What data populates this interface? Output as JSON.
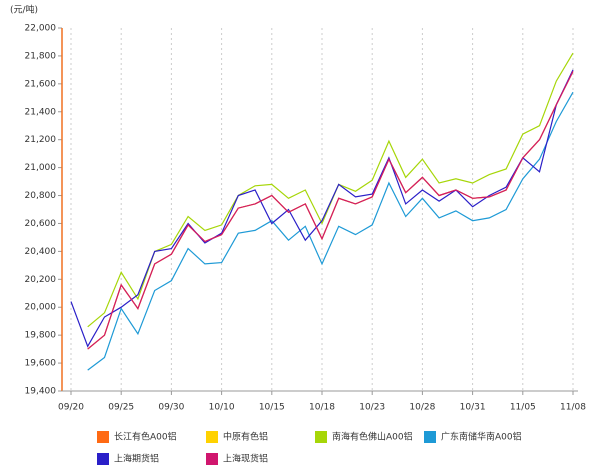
{
  "chart_data": {
    "type": "line",
    "y_label": "(元/吨)",
    "categories": [
      "09/20",
      null,
      null,
      "09/25",
      null,
      null,
      "09/30",
      null,
      null,
      "10/10",
      null,
      null,
      "10/15",
      null,
      null,
      "10/18",
      null,
      null,
      "10/23",
      null,
      null,
      "10/28",
      null,
      null,
      "10/31",
      null,
      null,
      "11/05",
      null,
      null,
      "11/08"
    ],
    "ylim": [
      19400,
      22000
    ],
    "yticks": [
      {
        "value": 19400,
        "label": "19,400"
      },
      {
        "value": 19600,
        "label": "19,600"
      },
      {
        "value": 19800,
        "label": "19,800"
      },
      {
        "value": 20000,
        "label": "20,000"
      },
      {
        "value": 20200,
        "label": "20,200"
      },
      {
        "value": 20400,
        "label": "20,400"
      },
      {
        "value": 20600,
        "label": "20,600"
      },
      {
        "value": 20800,
        "label": "20,800"
      },
      {
        "value": 21000,
        "label": "21,000"
      },
      {
        "value": 21200,
        "label": "21,200"
      },
      {
        "value": 21400,
        "label": "21,400"
      },
      {
        "value": 21600,
        "label": "21,600"
      },
      {
        "value": 21800,
        "label": "21,800"
      },
      {
        "value": 22000,
        "label": "22,000"
      }
    ],
    "grid": true,
    "series": [
      {
        "name": "长江有色A00铝",
        "color": "#ff6a13",
        "values": [
          null,
          19700,
          19800,
          20160,
          19990,
          20310,
          20380,
          20590,
          20470,
          20520,
          20710,
          20740,
          20800,
          20680,
          20740,
          20490,
          20780,
          20740,
          20790,
          21060,
          20820,
          20930,
          20800,
          20840,
          20780,
          20790,
          20840,
          21070,
          21200,
          21450,
          21690
        ]
      },
      {
        "name": "中原有色铝",
        "color": "#ffd200",
        "values": [
          null,
          19700,
          19800,
          20160,
          19990,
          20310,
          20380,
          20590,
          20470,
          20520,
          20710,
          20740,
          20800,
          20680,
          20740,
          20490,
          20780,
          20740,
          20790,
          21060,
          20820,
          20930,
          20800,
          20840,
          20780,
          20790,
          20840,
          21070,
          21200,
          21450,
          21690
        ]
      },
      {
        "name": "南海有色佛山A00铝",
        "color": "#a6d608",
        "values": [
          null,
          19860,
          19960,
          20250,
          20060,
          20400,
          20450,
          20650,
          20550,
          20590,
          20800,
          20870,
          20880,
          20780,
          20840,
          20600,
          20880,
          20830,
          20910,
          21190,
          20930,
          21060,
          20890,
          20920,
          20890,
          20950,
          20990,
          21240,
          21300,
          21620,
          21820
        ]
      },
      {
        "name": "广东南储华南A00铝",
        "color": "#1e9ad6",
        "values": [
          null,
          19550,
          19640,
          19990,
          19810,
          20120,
          20190,
          20420,
          20310,
          20320,
          20530,
          20550,
          20620,
          20480,
          20580,
          20310,
          20580,
          20520,
          20590,
          20890,
          20650,
          20780,
          20640,
          20690,
          20620,
          20640,
          20700,
          20920,
          21060,
          21330,
          21540
        ]
      },
      {
        "name": "上海期货铝",
        "color": "#2a1fc8",
        "values": [
          20040,
          19720,
          19930,
          20000,
          20090,
          20400,
          20420,
          20600,
          20460,
          20530,
          20800,
          20840,
          20600,
          20700,
          20480,
          20620,
          20880,
          20790,
          20810,
          21070,
          20740,
          20840,
          20760,
          20840,
          20720,
          20800,
          20860,
          21070,
          20970,
          21450,
          21700
        ]
      },
      {
        "name": "上海现货铝",
        "color": "#d0166e",
        "values": [
          null,
          19700,
          19800,
          20160,
          19990,
          20310,
          20380,
          20590,
          20470,
          20520,
          20710,
          20740,
          20800,
          20680,
          20740,
          20490,
          20780,
          20740,
          20790,
          21060,
          20820,
          20930,
          20800,
          20840,
          20780,
          20790,
          20840,
          21070,
          21200,
          21450,
          21690
        ]
      }
    ]
  }
}
